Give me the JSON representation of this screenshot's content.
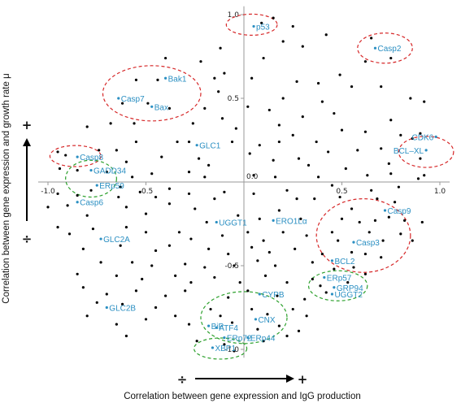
{
  "chart_data": {
    "type": "scatter",
    "xlabel": "Correlation between gene expression and IgG production",
    "ylabel": "Correlation between gene expression and growth rate μ",
    "xlim": [
      -1.05,
      1.05
    ],
    "ylim": [
      -1.05,
      1.05
    ],
    "grid": false,
    "x_ticks": [
      {
        "value": -1.0,
        "label": "-1.0"
      },
      {
        "value": -0.5,
        "label": "-0.5"
      },
      {
        "value": 0.0,
        "label": "0.0"
      },
      {
        "value": 0.5,
        "label": "0.5"
      },
      {
        "value": 1.0,
        "label": "1.0"
      }
    ],
    "y_ticks": [
      {
        "value": 1.0,
        "label": "1.0"
      },
      {
        "value": 0.5,
        "label": "0.5"
      },
      {
        "value": -0.5,
        "label": "-0.5"
      },
      {
        "value": -1.0,
        "label": "-1.0"
      }
    ],
    "x_direction_signs": {
      "negative": "÷",
      "positive": "+"
    },
    "y_direction_signs": {
      "negative": "÷",
      "positive": "+"
    },
    "circle_colors": {
      "red": "#d62728",
      "green": "#2ca02c"
    },
    "colors": {
      "points": "#000000",
      "labels": "#2b8fc2"
    },
    "labeled_points": [
      {
        "label": "p53",
        "x": 0.05,
        "y": 0.93
      },
      {
        "label": "Casp2",
        "x": 0.67,
        "y": 0.8
      },
      {
        "label": "Bak1",
        "x": -0.4,
        "y": 0.62
      },
      {
        "label": "Casp7",
        "x": -0.64,
        "y": 0.5
      },
      {
        "label": "Bax",
        "x": -0.47,
        "y": 0.45
      },
      {
        "label": "CDK6",
        "x": 0.98,
        "y": 0.27
      },
      {
        "label": "GLC1",
        "x": -0.24,
        "y": 0.22
      },
      {
        "label": "BCL–XL",
        "x": 0.93,
        "y": 0.19
      },
      {
        "label": "Casp8",
        "x": -0.85,
        "y": 0.15
      },
      {
        "label": "GADD34",
        "x": -0.78,
        "y": 0.07
      },
      {
        "label": "ERp59",
        "x": -0.75,
        "y": -0.02
      },
      {
        "label": "Casp6",
        "x": -0.85,
        "y": -0.12
      },
      {
        "label": "Casp9",
        "x": 0.72,
        "y": -0.17
      },
      {
        "label": "ERO1Lα",
        "x": 0.15,
        "y": -0.23
      },
      {
        "label": "UGGT1",
        "x": -0.14,
        "y": -0.24
      },
      {
        "label": "GLC2A",
        "x": -0.73,
        "y": -0.34
      },
      {
        "label": "Casp3",
        "x": 0.56,
        "y": -0.36
      },
      {
        "label": "BCL2",
        "x": 0.45,
        "y": -0.47
      },
      {
        "label": "ERp57",
        "x": 0.41,
        "y": -0.57
      },
      {
        "label": "GRP94",
        "x": 0.46,
        "y": -0.63
      },
      {
        "label": "UGGT2",
        "x": 0.45,
        "y": -0.67
      },
      {
        "label": "CYPB",
        "x": 0.08,
        "y": -0.67
      },
      {
        "label": "GLC2B",
        "x": -0.7,
        "y": -0.75
      },
      {
        "label": "CNX",
        "x": 0.06,
        "y": -0.82
      },
      {
        "label": "BiP",
        "x": -0.18,
        "y": -0.86
      },
      {
        "label": "ATF4",
        "x": -0.14,
        "y": -0.87
      },
      {
        "label": "ERp72",
        "x": -0.1,
        "y": -0.93
      },
      {
        "label": "ERp44",
        "x": 0.02,
        "y": -0.93
      },
      {
        "label": "XBP1",
        "x": -0.16,
        "y": -0.99
      }
    ],
    "points": [
      [
        0.15,
        0.98
      ],
      [
        0.25,
        0.93
      ],
      [
        0.09,
        0.95
      ],
      [
        0.2,
        0.84
      ],
      [
        -0.12,
        0.8
      ],
      [
        0.1,
        0.74
      ],
      [
        0.3,
        0.81
      ],
      [
        0.42,
        0.88
      ],
      [
        0.65,
        0.86
      ],
      [
        0.75,
        0.74
      ],
      [
        0.62,
        0.72
      ],
      [
        0.49,
        0.64
      ],
      [
        -0.4,
        0.74
      ],
      [
        -0.22,
        0.72
      ],
      [
        -0.55,
        0.61
      ],
      [
        -0.44,
        0.61
      ],
      [
        -0.15,
        0.62
      ],
      [
        -0.13,
        0.54
      ],
      [
        -0.1,
        0.65
      ],
      [
        0.04,
        0.62
      ],
      [
        0.27,
        0.6
      ],
      [
        0.38,
        0.59
      ],
      [
        0.55,
        0.57
      ],
      [
        0.7,
        0.57
      ],
      [
        0.85,
        0.5
      ],
      [
        0.92,
        0.48
      ],
      [
        0.2,
        0.5
      ],
      [
        0.4,
        0.48
      ],
      [
        0.46,
        0.41
      ],
      [
        -0.62,
        0.47
      ],
      [
        -0.49,
        0.47
      ],
      [
        -0.38,
        0.44
      ],
      [
        -0.2,
        0.44
      ],
      [
        0.02,
        0.45
      ],
      [
        0.13,
        0.43
      ],
      [
        0.3,
        0.39
      ],
      [
        0.5,
        0.31
      ],
      [
        0.62,
        0.3
      ],
      [
        0.75,
        0.37
      ],
      [
        0.8,
        0.28
      ],
      [
        0.9,
        0.29
      ],
      [
        -0.8,
        0.33
      ],
      [
        -0.68,
        0.35
      ],
      [
        -0.56,
        0.35
      ],
      [
        -0.26,
        0.35
      ],
      [
        -0.11,
        0.38
      ],
      [
        -0.04,
        0.32
      ],
      [
        0.18,
        0.34
      ],
      [
        0.25,
        0.28
      ],
      [
        0.37,
        0.24
      ],
      [
        -0.55,
        0.24
      ],
      [
        -0.34,
        0.24
      ],
      [
        -0.28,
        0.24
      ],
      [
        -0.06,
        0.24
      ],
      [
        0.08,
        0.22
      ],
      [
        0.18,
        0.24
      ],
      [
        0.43,
        0.18
      ],
      [
        0.58,
        0.19
      ],
      [
        0.7,
        0.2
      ],
      [
        0.74,
        0.11
      ],
      [
        0.9,
        0.14
      ],
      [
        0.86,
        0.26
      ],
      [
        -0.95,
        0.18
      ],
      [
        -0.91,
        0.16
      ],
      [
        -0.74,
        0.19
      ],
      [
        -0.65,
        0.19
      ],
      [
        -0.6,
        0.12
      ],
      [
        -0.42,
        0.15
      ],
      [
        -0.23,
        0.14
      ],
      [
        -0.18,
        0.1
      ],
      [
        0.03,
        0.17
      ],
      [
        0.15,
        0.13
      ],
      [
        0.28,
        0.14
      ],
      [
        0.33,
        0.1
      ],
      [
        0.52,
        0.08
      ],
      [
        0.63,
        0.04
      ],
      [
        0.75,
        0.05
      ],
      [
        0.92,
        0.04
      ],
      [
        -0.94,
        0.08
      ],
      [
        -0.85,
        0.07
      ],
      [
        -0.7,
        0.06
      ],
      [
        -0.63,
        -0.03
      ],
      [
        -0.57,
        0.03
      ],
      [
        -0.47,
        0.05
      ],
      [
        -0.28,
        0.06
      ],
      [
        -0.2,
        0.03
      ],
      [
        0.05,
        0.04
      ],
      [
        0.16,
        0.03
      ],
      [
        0.38,
        0.03
      ],
      [
        0.45,
        -0.02
      ],
      [
        0.65,
        -0.05
      ],
      [
        0.79,
        -0.03
      ],
      [
        0.89,
        0.02
      ],
      [
        -0.95,
        -0.07
      ],
      [
        -0.85,
        -0.08
      ],
      [
        -0.78,
        -0.05
      ],
      [
        -0.64,
        -0.09
      ],
      [
        -0.53,
        -0.06
      ],
      [
        -0.45,
        -0.09
      ],
      [
        -0.38,
        -0.04
      ],
      [
        -0.28,
        -0.07
      ],
      [
        -0.15,
        -0.1
      ],
      [
        -0.1,
        -0.06
      ],
      [
        0.05,
        -0.07
      ],
      [
        0.22,
        -0.05
      ],
      [
        0.27,
        -0.1
      ],
      [
        0.36,
        -0.1
      ],
      [
        0.49,
        -0.09
      ],
      [
        0.55,
        -0.16
      ],
      [
        0.68,
        -0.1
      ],
      [
        0.77,
        -0.12
      ],
      [
        -1.0,
        -0.15
      ],
      [
        -0.9,
        -0.14
      ],
      [
        -0.8,
        -0.2
      ],
      [
        -0.6,
        -0.15
      ],
      [
        -0.5,
        -0.19
      ],
      [
        -0.38,
        -0.13
      ],
      [
        -0.25,
        -0.16
      ],
      [
        -0.19,
        -0.24
      ],
      [
        -0.03,
        -0.2
      ],
      [
        0.08,
        -0.22
      ],
      [
        0.18,
        -0.17
      ],
      [
        0.29,
        -0.22
      ],
      [
        0.5,
        -0.22
      ],
      [
        0.59,
        -0.24
      ],
      [
        0.67,
        -0.23
      ],
      [
        0.74,
        -0.21
      ],
      [
        0.82,
        -0.23
      ],
      [
        0.91,
        -0.24
      ],
      [
        -0.95,
        -0.27
      ],
      [
        -0.89,
        -0.31
      ],
      [
        -0.77,
        -0.28
      ],
      [
        -0.6,
        -0.27
      ],
      [
        -0.5,
        -0.3
      ],
      [
        -0.33,
        -0.3
      ],
      [
        -0.27,
        -0.34
      ],
      [
        -0.11,
        -0.32
      ],
      [
        0.02,
        -0.3
      ],
      [
        0.1,
        -0.35
      ],
      [
        0.2,
        -0.3
      ],
      [
        0.32,
        -0.32
      ],
      [
        0.45,
        -0.3
      ],
      [
        0.48,
        -0.35
      ],
      [
        0.64,
        -0.3
      ],
      [
        0.71,
        -0.35
      ],
      [
        0.8,
        -0.31
      ],
      [
        0.86,
        -0.35
      ],
      [
        -0.82,
        -0.4
      ],
      [
        -0.63,
        -0.38
      ],
      [
        -0.45,
        -0.41
      ],
      [
        -0.38,
        -0.38
      ],
      [
        -0.18,
        -0.4
      ],
      [
        -0.08,
        -0.43
      ],
      [
        0.04,
        -0.39
      ],
      [
        0.13,
        -0.42
      ],
      [
        0.26,
        -0.4
      ],
      [
        0.4,
        -0.43
      ],
      [
        0.55,
        -0.42
      ],
      [
        0.62,
        -0.43
      ],
      [
        0.7,
        -0.45
      ],
      [
        -0.73,
        -0.48
      ],
      [
        -0.57,
        -0.48
      ],
      [
        -0.47,
        -0.5
      ],
      [
        -0.3,
        -0.49
      ],
      [
        -0.2,
        -0.51
      ],
      [
        -0.05,
        -0.5
      ],
      [
        0.07,
        -0.47
      ],
      [
        0.16,
        -0.5
      ],
      [
        0.35,
        -0.48
      ],
      [
        0.46,
        -0.52
      ],
      [
        0.56,
        -0.51
      ],
      [
        0.62,
        -0.55
      ],
      [
        -0.85,
        -0.55
      ],
      [
        -0.65,
        -0.56
      ],
      [
        -0.52,
        -0.58
      ],
      [
        -0.35,
        -0.56
      ],
      [
        -0.27,
        -0.6
      ],
      [
        -0.15,
        -0.57
      ],
      [
        -0.02,
        -0.6
      ],
      [
        0.11,
        -0.56
      ],
      [
        0.22,
        -0.6
      ],
      [
        0.35,
        -0.58
      ],
      [
        0.39,
        -0.62
      ],
      [
        0.53,
        -0.6
      ],
      [
        -0.82,
        -0.63
      ],
      [
        -0.7,
        -0.67
      ],
      [
        -0.55,
        -0.65
      ],
      [
        -0.4,
        -0.68
      ],
      [
        -0.3,
        -0.65
      ],
      [
        -0.08,
        -0.69
      ],
      [
        0.02,
        -0.65
      ],
      [
        0.17,
        -0.68
      ],
      [
        0.31,
        -0.7
      ],
      [
        0.42,
        -0.66
      ],
      [
        -0.75,
        -0.72
      ],
      [
        -0.62,
        -0.73
      ],
      [
        -0.45,
        -0.75
      ],
      [
        -0.35,
        -0.8
      ],
      [
        -0.17,
        -0.76
      ],
      [
        -0.12,
        -0.8
      ],
      [
        0.04,
        -0.76
      ],
      [
        0.12,
        -0.79
      ],
      [
        0.25,
        -0.76
      ],
      [
        0.32,
        -0.8
      ],
      [
        -0.8,
        -0.8
      ],
      [
        -0.65,
        -0.85
      ],
      [
        -0.5,
        -0.82
      ],
      [
        -0.28,
        -0.85
      ],
      [
        -0.06,
        -0.84
      ],
      [
        0.07,
        -0.88
      ],
      [
        0.18,
        -0.86
      ],
      [
        0.28,
        -0.89
      ],
      [
        -0.6,
        -0.92
      ],
      [
        -0.24,
        -0.95
      ],
      [
        -0.1,
        -0.97
      ],
      [
        0.1,
        -0.95
      ],
      [
        0.22,
        -0.92
      ],
      [
        -0.05,
        -1.01
      ]
    ],
    "circles": [
      {
        "color": "red",
        "cx": 0.04,
        "cy": 0.94,
        "rx": 0.13,
        "ry": 0.063
      },
      {
        "color": "red",
        "cx": 0.72,
        "cy": 0.8,
        "rx": 0.14,
        "ry": 0.09
      },
      {
        "color": "red",
        "cx": -0.47,
        "cy": 0.53,
        "rx": 0.25,
        "ry": 0.165
      },
      {
        "color": "red",
        "cx": 0.93,
        "cy": 0.18,
        "rx": 0.14,
        "ry": 0.093
      },
      {
        "color": "red",
        "cx": -0.86,
        "cy": 0.155,
        "rx": 0.13,
        "ry": 0.063
      },
      {
        "color": "green",
        "cx": -0.78,
        "cy": 0.02,
        "rx": 0.13,
        "ry": 0.11
      },
      {
        "color": "red",
        "cx": 0.61,
        "cy": -0.32,
        "rx": 0.24,
        "ry": 0.22
      },
      {
        "color": "green",
        "cx": 0.48,
        "cy": -0.62,
        "rx": 0.15,
        "ry": 0.09
      },
      {
        "color": "green",
        "cx": 0.0,
        "cy": -0.81,
        "rx": 0.22,
        "ry": 0.155
      },
      {
        "color": "green",
        "cx": -0.12,
        "cy": -0.995,
        "rx": 0.135,
        "ry": 0.063
      }
    ]
  }
}
